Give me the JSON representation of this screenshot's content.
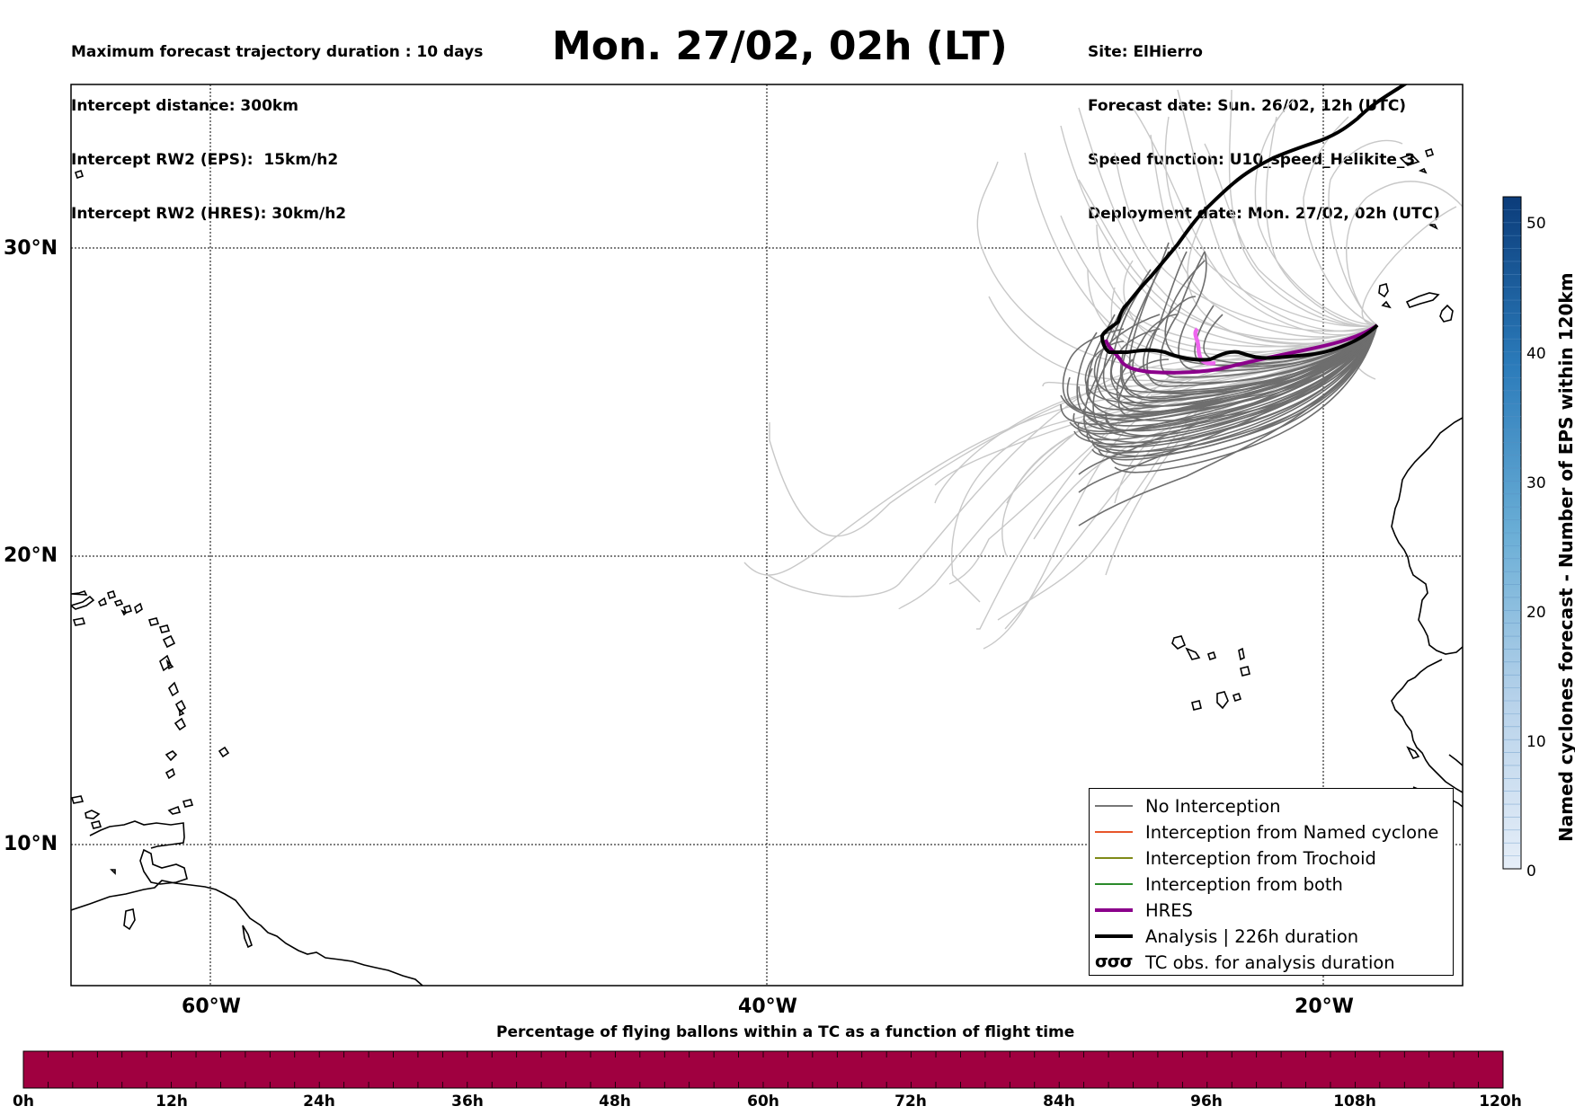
{
  "header": {
    "left_lines": [
      "Maximum forecast trajectory duration : 10 days",
      "Intercept distance: 300km",
      "Intercept RW2 (EPS):  15km/h2",
      "Intercept RW2 (HRES): 30km/h2"
    ],
    "title": "Mon. 27/02, 02h (LT)",
    "right_lines": [
      "Site: ElHierro",
      "Forecast date: Sun. 26/02, 12h (UTC)",
      "Speed function: U10_speed_Helikite_3",
      "Deployment date: Mon. 27/02, 02h (UTC)"
    ]
  },
  "map": {
    "lat_labels": [
      "30°N",
      "20°N",
      "10°N"
    ],
    "lon_labels": [
      "60°W",
      "40°W",
      "20°W"
    ],
    "colors": {
      "no_interception": "#6e6e6e",
      "eps_light": "#c8c8c8",
      "hres": "#8b008b",
      "hres_early": "#ee66ee",
      "analysis": "#000000",
      "coast": "#000000"
    }
  },
  "legend": {
    "items": [
      {
        "label": "No Interception",
        "color": "#777777",
        "width": 1.5,
        "kind": "line"
      },
      {
        "label": "Interception from Named cyclone",
        "color": "#e8562a",
        "width": 1.5,
        "kind": "line"
      },
      {
        "label": "Interception from Trochoid",
        "color": "#7f8a18",
        "width": 1.5,
        "kind": "line"
      },
      {
        "label": "Interception from both",
        "color": "#2a8a2a",
        "width": 1.5,
        "kind": "line"
      },
      {
        "label": "HRES",
        "color": "#8b008b",
        "width": 4,
        "kind": "line"
      },
      {
        "label": "Analysis | 226h duration",
        "color": "#000000",
        "width": 4,
        "kind": "line"
      },
      {
        "label": "TC obs. for analysis duration",
        "color": "#000000",
        "width": 0,
        "kind": "symbol",
        "symbol": "σσσ"
      }
    ]
  },
  "colorbar": {
    "title": "Named cyclones forecast - Number of EPS within 120km",
    "ticks": [
      "0",
      "10",
      "20",
      "30",
      "40",
      "50"
    ],
    "max": 52,
    "color_low": "#e6eef8",
    "color_high": "#0b3c7a"
  },
  "bottom_bar": {
    "title": "Percentage of flying ballons within a TC as a function of flight time",
    "color": "#a00040",
    "ticks": [
      "0h",
      "12h",
      "24h",
      "36h",
      "48h",
      "60h",
      "72h",
      "84h",
      "96h",
      "108h",
      "120h"
    ]
  }
}
